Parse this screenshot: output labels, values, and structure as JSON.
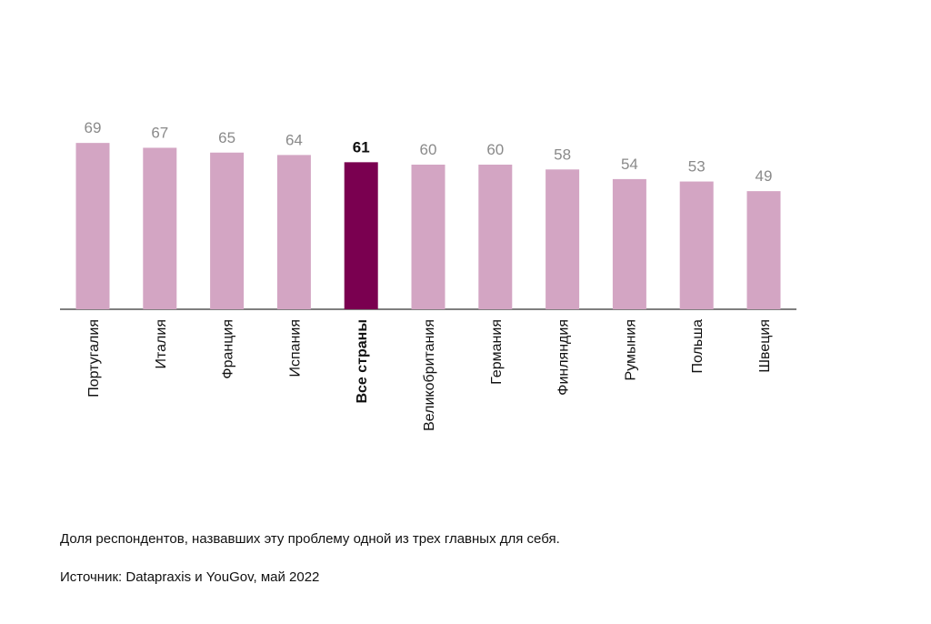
{
  "chart_data": {
    "type": "bar",
    "categories": [
      "Португалия",
      "Италия",
      "Франция",
      "Испания",
      "Все страны",
      "Великобритания",
      "Германия",
      "Финляндия",
      "Румыния",
      "Польша",
      "Швеция"
    ],
    "values": [
      69,
      67,
      65,
      64,
      61,
      60,
      60,
      58,
      54,
      53,
      49
    ],
    "highlight": "Все страны",
    "ylim": [
      0,
      70
    ],
    "xlabel": "",
    "ylabel": "",
    "grid": false,
    "colors": {
      "bar": "#d3a5c3",
      "highlight": "#7a0050",
      "value_label": "#8a8a8a",
      "highlight_label": "#111111",
      "axis": "#555555"
    }
  },
  "notes": {
    "description": "Доля респондентов, назвавших эту проблему одной из трех главных для себя.",
    "source": "Источник: Datapraxis и YouGov, май 2022"
  }
}
